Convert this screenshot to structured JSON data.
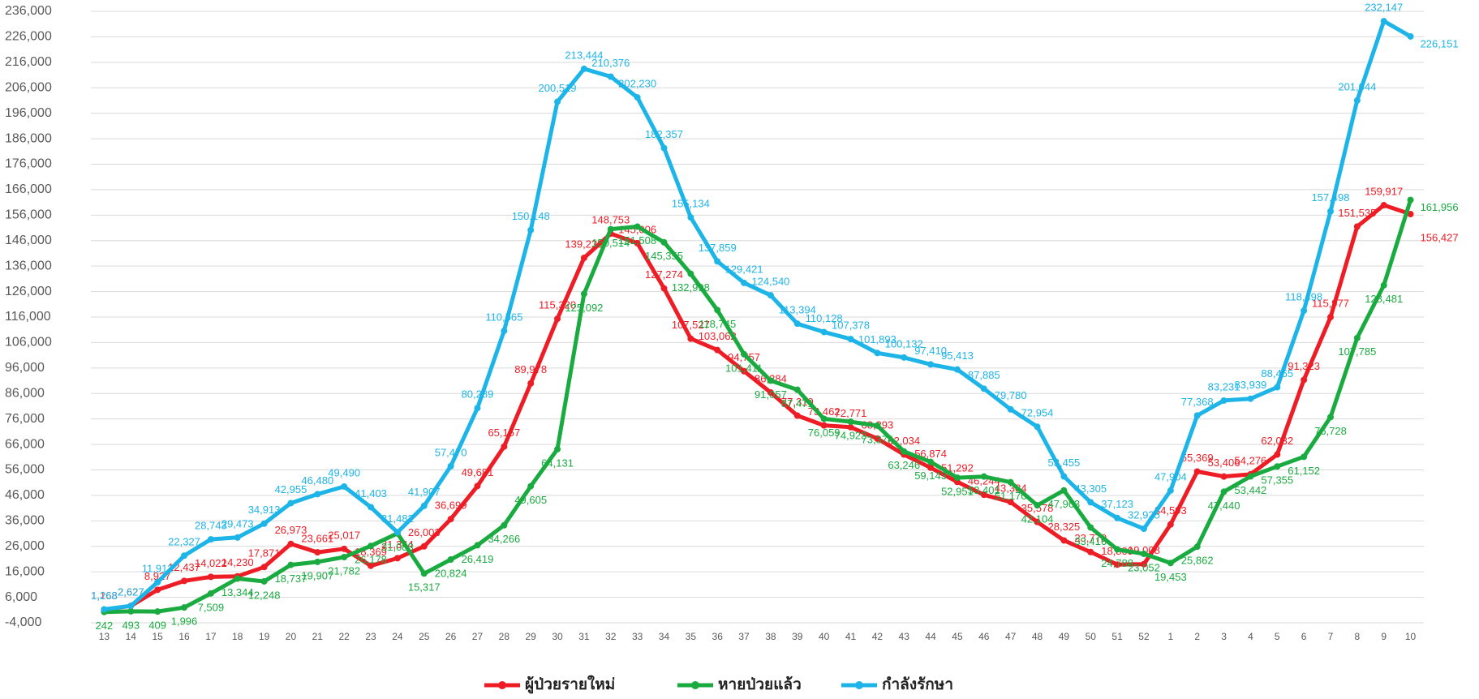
{
  "chart_data": {
    "type": "line",
    "categories": [
      "13",
      "14",
      "15",
      "16",
      "17",
      "18",
      "19",
      "20",
      "21",
      "22",
      "23",
      "24",
      "25",
      "26",
      "27",
      "28",
      "29",
      "30",
      "31",
      "32",
      "33",
      "34",
      "35",
      "36",
      "37",
      "38",
      "39",
      "40",
      "41",
      "42",
      "43",
      "44",
      "45",
      "46",
      "47",
      "48",
      "49",
      "50",
      "51",
      "52",
      "1",
      "2",
      "3",
      "4",
      "5",
      "6",
      "7",
      "8",
      "9",
      "10"
    ],
    "ylim": [
      -4000,
      236000
    ],
    "yticks": [
      {
        "value": -4000,
        "label": "-4,000"
      },
      {
        "value": 6000,
        "label": "6,000"
      },
      {
        "value": 16000,
        "label": "16,000"
      },
      {
        "value": 26000,
        "label": "26,000"
      },
      {
        "value": 36000,
        "label": "36,000"
      },
      {
        "value": 46000,
        "label": "46,000"
      },
      {
        "value": 56000,
        "label": "56,000"
      },
      {
        "value": 66000,
        "label": "66,000"
      },
      {
        "value": 76000,
        "label": "76,000"
      },
      {
        "value": 86000,
        "label": "86,000"
      },
      {
        "value": 96000,
        "label": "96,000"
      },
      {
        "value": 106000,
        "label": "106,000"
      },
      {
        "value": 116000,
        "label": "116,000"
      },
      {
        "value": 126000,
        "label": "126,000"
      },
      {
        "value": 136000,
        "label": "136,000"
      },
      {
        "value": 146000,
        "label": "146,000"
      },
      {
        "value": 156000,
        "label": "156,000"
      },
      {
        "value": 166000,
        "label": "166,000"
      },
      {
        "value": 176000,
        "label": "176,000"
      },
      {
        "value": 186000,
        "label": "186,000"
      },
      {
        "value": 196000,
        "label": "196,000"
      },
      {
        "value": 206000,
        "label": "206,000"
      },
      {
        "value": 216000,
        "label": "216,000"
      },
      {
        "value": 226000,
        "label": "226,000"
      },
      {
        "value": 236000,
        "label": "236,000"
      }
    ],
    "grid": true,
    "legend": "bottom",
    "series": [
      {
        "name": "ผู้ป่วยรายใหม่",
        "color": "#ee1c25",
        "values": [
          1168,
          2627,
          8927,
          12437,
          14022,
          14230,
          17871,
          26973,
          23661,
          25017,
          18369,
          21344,
          26003,
          36699,
          49681,
          65157,
          89978,
          115320,
          139235,
          148753,
          145006,
          127274,
          107527,
          103062,
          94757,
          86384,
          77319,
          73462,
          72771,
          68293,
          62034,
          56874,
          51292,
          46244,
          43384,
          35578,
          28325,
          23770,
          18809,
          19008,
          34593,
          55369,
          53406,
          54276,
          62032,
          91323,
          115977,
          151535,
          159917,
          156427
        ],
        "value_labels": [
          "1,168",
          "2,627",
          "8,927",
          "12,437",
          "14,022",
          "14,230",
          "17,871",
          "26,973",
          "23,661",
          "25,017",
          "18,369",
          "21,344",
          "26,003",
          "36,699",
          "49,681",
          "65,157",
          "89,978",
          "115,320",
          "139,235",
          "148,753",
          "145,006",
          "127,274",
          "107,527",
          "103,062",
          "94,757",
          "86,384",
          "77,319",
          "73,462",
          "72,771",
          "68,293",
          "62,034",
          "56,874",
          "51,292",
          "46,244",
          "43,384",
          "35,578",
          "28,325",
          "23,770",
          "18,809",
          "19,008",
          "34,593",
          "55,369",
          "53,406",
          "54,276",
          "62,032",
          "91,323",
          "115,977",
          "151,535",
          "159,917",
          "156,427"
        ]
      },
      {
        "name": "หายป่วยแล้ว",
        "color": "#1aab40",
        "values": [
          242,
          493,
          409,
          1996,
          7509,
          13344,
          12248,
          18737,
          19907,
          21782,
          26178,
          31083,
          15317,
          20824,
          26419,
          34266,
          49605,
          64131,
          125092,
          150514,
          151508,
          145355,
          132998,
          118745,
          101411,
          91057,
          87471,
          76059,
          74923,
          73374,
          63246,
          59143,
          52951,
          53401,
          51170,
          42104,
          47963,
          33416,
          24788,
          23052,
          19453,
          25862,
          47440,
          53442,
          57355,
          61152,
          76728,
          107785,
          128481,
          161956
        ],
        "value_labels": [
          "242",
          "493",
          "409",
          "1,996",
          "7,509",
          "13,344",
          "12,248",
          "18,737",
          "19,907",
          "21,782",
          "26,178",
          "31,083",
          "15,317",
          "20,824",
          "26,419",
          "34,266",
          "49,605",
          "64,131",
          "125,092",
          "150,514",
          "151,508",
          "145,355",
          "132,998",
          "118,745",
          "101,411",
          "91,057",
          "87,471",
          "76,059",
          "74,923",
          "73,374",
          "63,246",
          "59,143",
          "52,951",
          "53,401",
          "51,170",
          "42,104",
          "47,963",
          "33,416",
          "24,788",
          "23,052",
          "19,453",
          "25,862",
          "47,440",
          "53,442",
          "57,355",
          "61,152",
          "76,728",
          "107,785",
          "128,481",
          "161,956"
        ]
      },
      {
        "name": "กำลังรักษา",
        "color": "#1db4e8",
        "values": [
          1268,
          2627,
          11912,
          22327,
          28743,
          29473,
          34913,
          42955,
          46480,
          49490,
          41403,
          31482,
          41907,
          57470,
          80289,
          110565,
          150148,
          200519,
          213444,
          210376,
          202230,
          182357,
          155134,
          137859,
          129421,
          124540,
          113394,
          110128,
          107378,
          101893,
          100132,
          97410,
          95413,
          87885,
          79780,
          72954,
          53455,
          43305,
          37123,
          32925,
          47904,
          77368,
          83231,
          83939,
          88465,
          118498,
          157498,
          201044,
          232147,
          226151
        ],
        "value_labels": [
          "1,268",
          "2,627",
          "11,912",
          "22,327",
          "28,743",
          "29,473",
          "34,913",
          "42,955",
          "46,480",
          "49,490",
          "41,403",
          "31,482",
          "41,907",
          "57,470",
          "80,289",
          "110,565",
          "150,148",
          "200,519",
          "213,444",
          "210,376",
          "202,230",
          "182,357",
          "155,134",
          "137,859",
          "129,421",
          "124,540",
          "113,394",
          "110,128",
          "107,378",
          "101,893",
          "100,132",
          "97,410",
          "95,413",
          "87,885",
          "79,780",
          "72,954",
          "53,455",
          "43,305",
          "37,123",
          "32,925",
          "47,904",
          "77,368",
          "83,231",
          "83,939",
          "88,465",
          "118,498",
          "157,498",
          "201,044",
          "232,147",
          "226,151"
        ]
      }
    ]
  }
}
